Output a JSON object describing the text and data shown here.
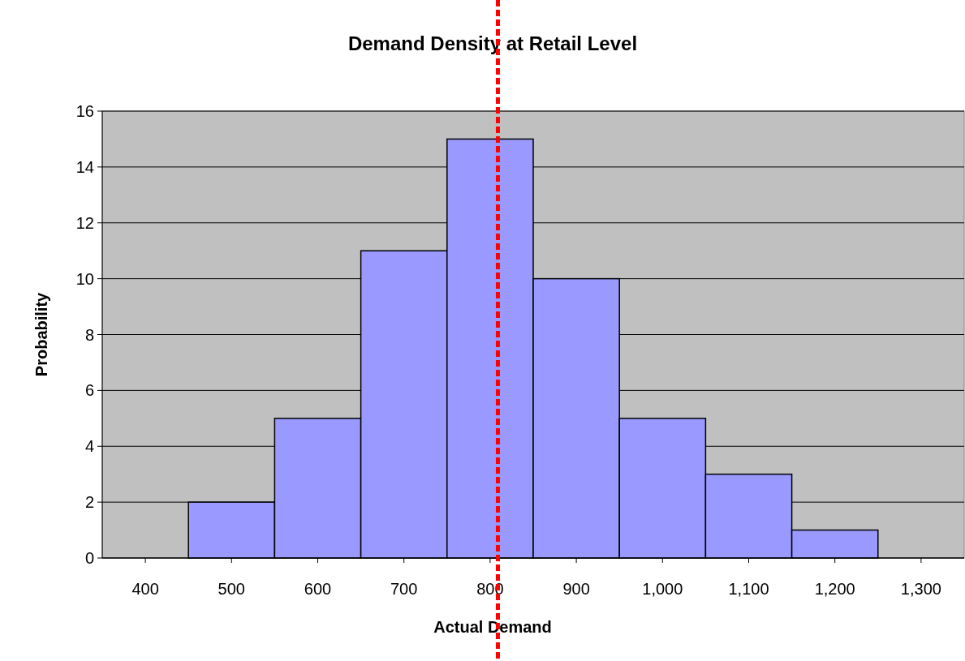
{
  "chart_data": {
    "type": "histogram",
    "title": "Demand Density at Retail Level",
    "xlabel": "Actual Demand",
    "ylabel": "Probability",
    "bins": [
      450,
      550,
      650,
      750,
      850,
      950,
      1050,
      1150,
      1250
    ],
    "values": [
      2,
      5,
      11,
      15,
      10,
      5,
      3,
      1
    ],
    "color": "#9999ff",
    "xlim": [
      350,
      1350
    ],
    "xticks": [
      400,
      500,
      600,
      700,
      800,
      900,
      {
        "value": 1000,
        "label": "1,000"
      },
      {
        "value": 1100,
        "label": "1,100"
      },
      {
        "value": 1200,
        "label": "1,200"
      },
      {
        "value": 1300,
        "label": "1,300"
      }
    ],
    "ylim": [
      0,
      16
    ],
    "yticks": [
      0,
      2,
      4,
      6,
      8,
      10,
      12,
      14,
      16
    ],
    "grid": "y",
    "ref_lines": [
      {
        "axis": "x",
        "value": 809,
        "color": "#ff0000",
        "line_style": "dashed"
      }
    ]
  }
}
